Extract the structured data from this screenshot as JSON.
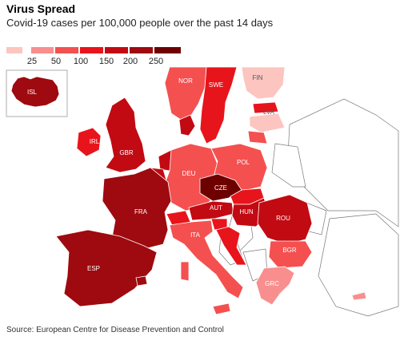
{
  "header": {
    "title": "Virus Spread",
    "subtitle": "Covid-19 cases per 100,000 people over the past 14 days"
  },
  "legend": {
    "ticks": [
      "25",
      "50",
      "100",
      "150",
      "200",
      "250"
    ],
    "colors": [
      "#fcc5c0",
      "#f98e8e",
      "#f45050",
      "#e8141b",
      "#c20a12",
      "#9e0a0f",
      "#6e0000"
    ]
  },
  "map": {
    "countries": [
      {
        "code": "ISL",
        "bucket": 5
      },
      {
        "code": "NOR",
        "bucket": 2
      },
      {
        "code": "SWE",
        "bucket": 3
      },
      {
        "code": "FIN",
        "bucket": 0
      },
      {
        "code": "LVA",
        "bucket": 0
      },
      {
        "code": "IRL",
        "bucket": 3
      },
      {
        "code": "GBR",
        "bucket": 4
      },
      {
        "code": "DEU",
        "bucket": 2
      },
      {
        "code": "POL",
        "bucket": 2
      },
      {
        "code": "CZE",
        "bucket": 6
      },
      {
        "code": "FRA",
        "bucket": 5
      },
      {
        "code": "AUT",
        "bucket": 4
      },
      {
        "code": "HUN",
        "bucket": 4
      },
      {
        "code": "ROU",
        "bucket": 4
      },
      {
        "code": "ITA",
        "bucket": 2
      },
      {
        "code": "BGR",
        "bucket": 2
      },
      {
        "code": "GRC",
        "bucket": 1
      },
      {
        "code": "ESP",
        "bucket": 5
      }
    ]
  },
  "source": "Source: European Centre for Disease Prevention and Control"
}
